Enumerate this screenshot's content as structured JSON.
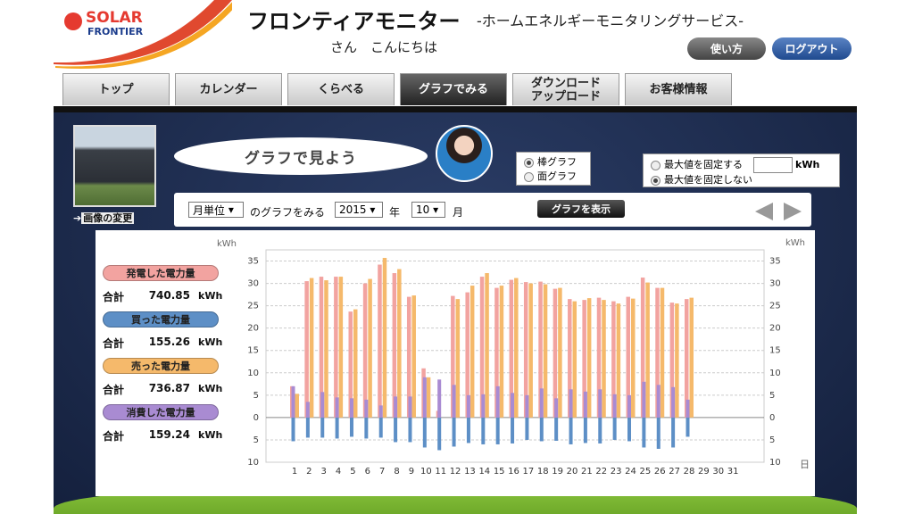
{
  "header": {
    "logo_top": "SOLAR",
    "logo_bottom": "FRONTIER",
    "title": "フロンティアモニター",
    "subtitle": "-ホームエネルギーモニタリングサービス-",
    "greeting": "さん　こんにちは",
    "buttons": [
      "使い方",
      "ログアウト"
    ]
  },
  "tabs": [
    {
      "label": "トップ",
      "active": false
    },
    {
      "label": "カレンダー",
      "active": false
    },
    {
      "label": "くらべる",
      "active": false
    },
    {
      "label": "グラフでみる",
      "active": true
    },
    {
      "label": "ダウンロード\nアップロード",
      "active": false
    },
    {
      "label": "お客様情報",
      "active": false
    }
  ],
  "photo_link": "画像の変更",
  "bubble": "グラフで見よう",
  "graph_type": {
    "options": [
      "棒グラフ",
      "面グラフ"
    ],
    "selected": 0
  },
  "max_value": {
    "options": [
      "最大値を固定する",
      "最大値を固定しない"
    ],
    "unit": "kWh",
    "selected": 1
  },
  "controls": {
    "period": "月単位",
    "period_suffix": "のグラフをみる",
    "year": "2015",
    "year_suffix": "年",
    "month": "10",
    "month_suffix": "月",
    "button": "グラフを表示"
  },
  "summary": {
    "total_label": "合計",
    "unit": "kWh"
  },
  "chart_data": {
    "type": "bar",
    "ylabel": "kWh",
    "y2label": "kWh",
    "xlabel": "日",
    "categories": [
      "1",
      "2",
      "3",
      "4",
      "5",
      "6",
      "7",
      "8",
      "9",
      "10",
      "11",
      "12",
      "13",
      "14",
      "15",
      "16",
      "17",
      "18",
      "19",
      "20",
      "21",
      "22",
      "23",
      "24",
      "25",
      "26",
      "27",
      "28",
      "29",
      "30",
      "31"
    ],
    "ylim": [
      -10,
      37.5
    ],
    "yticks": [
      {
        "value": -10,
        "label": "10"
      },
      {
        "value": -5,
        "label": "5"
      },
      0,
      5,
      10,
      15,
      20,
      25,
      30,
      35
    ],
    "grid": true,
    "series": [
      {
        "name": "発電した電力量",
        "color": "#f2a3a0",
        "total": 740.85,
        "values": [
          7,
          30.5,
          31.5,
          31.5,
          23.7,
          30,
          34.2,
          32.3,
          27,
          11,
          1.5,
          27.2,
          28,
          31.5,
          29,
          30.8,
          30.3,
          30.4,
          28.8,
          26.5,
          26.3,
          26.8,
          26,
          27,
          31.3,
          29,
          25.7,
          26.5,
          null,
          null,
          null
        ]
      },
      {
        "name": "買った電力量",
        "color": "#5d8fc6",
        "total": 155.26,
        "values": [
          -5.3,
          -4.5,
          -4.5,
          -4.7,
          -4.3,
          -4.7,
          -4.5,
          -5.5,
          -5.5,
          -6.7,
          -7.3,
          -6.5,
          -5.7,
          -6,
          -6,
          -5.8,
          -5,
          -5.3,
          -5.2,
          -6,
          -5.7,
          -5.8,
          -5,
          -5.3,
          -6.7,
          -7,
          -6.7,
          -4.3,
          null,
          null,
          null
        ]
      },
      {
        "name": "売った電力量",
        "color": "#f5b96b",
        "total": 736.87,
        "values": [
          5.3,
          31.2,
          30.7,
          31.5,
          24.2,
          31,
          35.7,
          33.2,
          27.3,
          9,
          0,
          26.5,
          29.5,
          32.3,
          29.5,
          31.2,
          30,
          29.8,
          29,
          26,
          26.7,
          26.3,
          25.5,
          26.6,
          30.2,
          29,
          25.5,
          26.8,
          null,
          null,
          null
        ]
      },
      {
        "name": "消費した電力量",
        "color": "#a98bd2",
        "total": 159.24,
        "values": [
          7,
          3.5,
          5.7,
          4.5,
          4.3,
          4,
          2.7,
          4.7,
          4.7,
          9,
          8.5,
          7.3,
          5,
          5.2,
          7,
          5.5,
          5,
          6.5,
          4.3,
          6.3,
          5.8,
          6.3,
          5.2,
          5,
          8,
          7.3,
          6.8,
          4,
          null,
          null,
          null
        ]
      }
    ]
  }
}
